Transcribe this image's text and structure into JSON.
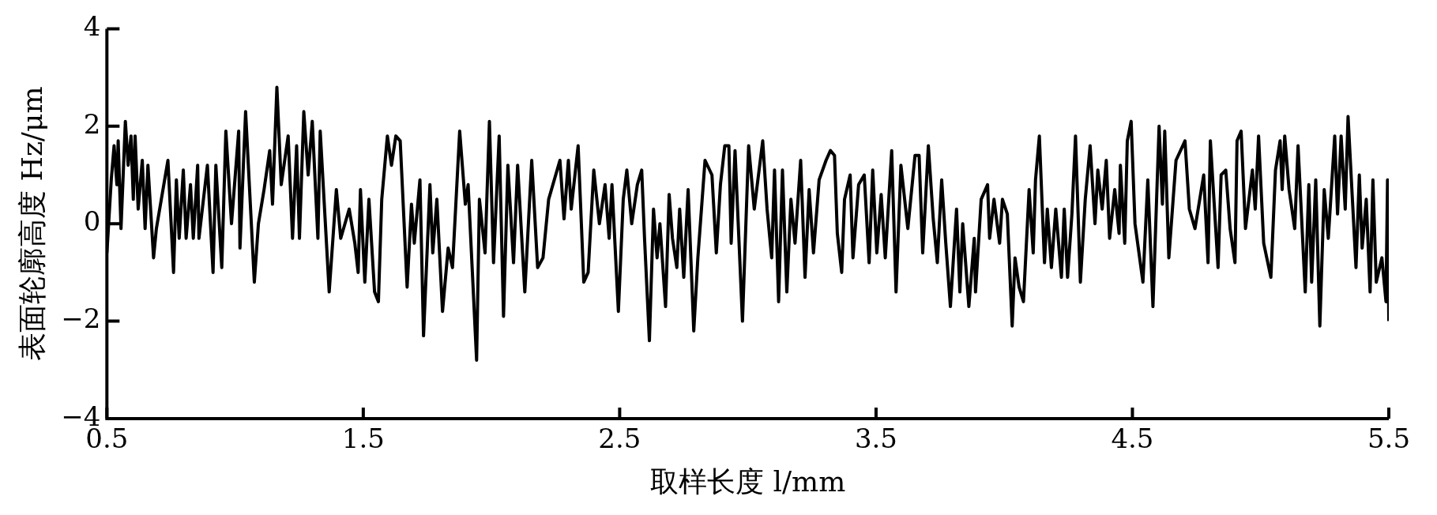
{
  "chart_data": {
    "type": "line",
    "xlabel": "取样长度 l/mm",
    "ylabel": "表面轮廓高度 Hz/μm",
    "xlim": [
      0.5,
      5.5
    ],
    "xticks": [
      0.5,
      1.5,
      2.5,
      3.5,
      4.5,
      5.5
    ],
    "ylim": [
      -4,
      4
    ],
    "yticks": [
      {
        "value": -4,
        "label": "−4"
      },
      {
        "value": -2,
        "label": "−2"
      },
      0,
      2,
      4
    ],
    "series": [
      {
        "color": "#000000",
        "x": [
          0.5,
          0.517,
          0.528,
          0.539,
          0.544,
          0.555,
          0.572,
          0.583,
          0.594,
          0.603,
          0.61,
          0.622,
          0.638,
          0.649,
          0.66,
          0.682,
          0.693,
          0.738,
          0.76,
          0.771,
          0.782,
          0.798,
          0.809,
          0.826,
          0.837,
          0.854,
          0.859,
          0.892,
          0.914,
          0.925,
          0.948,
          0.964,
          0.986,
          1.014,
          1.019,
          1.041,
          1.075,
          1.091,
          1.113,
          1.135,
          1.146,
          1.163,
          1.18,
          1.207,
          1.224,
          1.24,
          1.251,
          1.268,
          1.285,
          1.301,
          1.323,
          1.332,
          1.367,
          1.395,
          1.412,
          1.445,
          1.467,
          1.48,
          1.489,
          1.506,
          1.522,
          1.544,
          1.559,
          1.572,
          1.594,
          1.61,
          1.627,
          1.644,
          1.671,
          1.688,
          1.699,
          1.721,
          1.735,
          1.76,
          1.771,
          1.787,
          1.809,
          1.831,
          1.848,
          1.876,
          1.898,
          1.909,
          1.942,
          1.953,
          1.975,
          1.992,
          2.008,
          2.03,
          2.047,
          2.064,
          2.086,
          2.102,
          2.13,
          2.157,
          2.18,
          2.201,
          2.223,
          2.267,
          2.283,
          2.3,
          2.311,
          2.338,
          2.36,
          2.377,
          2.399,
          2.421,
          2.443,
          2.459,
          2.47,
          2.495,
          2.514,
          2.528,
          2.547,
          2.569,
          2.586,
          2.597,
          2.616,
          2.632,
          2.646,
          2.657,
          2.679,
          2.693,
          2.706,
          2.723,
          2.734,
          2.75,
          2.767,
          2.789,
          2.805,
          2.833,
          2.86,
          2.877,
          2.893,
          2.91,
          2.926,
          2.935,
          2.95,
          2.979,
          3.003,
          3.025,
          3.058,
          3.075,
          3.093,
          3.104,
          3.12,
          3.135,
          3.152,
          3.168,
          3.184,
          3.206,
          3.223,
          3.239,
          3.256,
          3.278,
          3.305,
          3.322,
          3.338,
          3.349,
          3.366,
          3.377,
          3.399,
          3.41,
          3.432,
          3.454,
          3.473,
          3.487,
          3.503,
          3.52,
          3.536,
          3.561,
          3.578,
          3.597,
          3.624,
          3.652,
          3.668,
          3.682,
          3.704,
          3.723,
          3.739,
          3.756,
          3.772,
          3.79,
          3.814,
          3.827,
          3.838,
          3.862,
          3.883,
          3.888,
          3.91,
          3.935,
          3.943,
          3.96,
          3.982,
          3.993,
          4.012,
          4.031,
          4.042,
          4.058,
          4.075,
          4.097,
          4.113,
          4.122,
          4.137,
          4.157,
          4.168,
          4.184,
          4.201,
          4.223,
          4.234,
          4.247,
          4.264,
          4.278,
          4.297,
          4.316,
          4.335,
          4.354,
          4.365,
          4.382,
          4.398,
          4.411,
          4.431,
          4.448,
          4.453,
          4.47,
          4.48,
          4.495,
          4.51,
          4.541,
          4.56,
          4.58,
          4.604,
          4.617,
          4.626,
          4.642,
          4.67,
          4.705,
          4.722,
          4.744,
          4.778,
          4.795,
          4.804,
          4.834,
          4.846,
          4.864,
          4.881,
          4.9,
          4.908,
          4.924,
          4.941,
          4.968,
          4.979,
          4.992,
          5.012,
          5.04,
          5.058,
          5.076,
          5.084,
          5.094,
          5.111,
          5.133,
          5.146,
          5.174,
          5.188,
          5.199,
          5.215,
          5.231,
          5.248,
          5.264,
          5.289,
          5.3,
          5.314,
          5.33,
          5.341,
          5.372,
          5.385,
          5.396,
          5.412,
          5.427,
          5.438,
          5.451,
          5.473,
          5.489,
          5.495,
          5.5
        ],
        "values": [
          -0.6,
          0.9,
          1.6,
          0.8,
          1.7,
          -0.1,
          2.1,
          1.2,
          1.8,
          0.5,
          1.8,
          0.3,
          1.3,
          -0.1,
          1.2,
          -0.7,
          -0.1,
          1.3,
          -1.0,
          0.9,
          -0.3,
          1.1,
          -0.3,
          0.8,
          -0.3,
          1.2,
          -0.3,
          1.2,
          -1.0,
          1.2,
          -0.9,
          1.9,
          0.0,
          1.9,
          -0.5,
          2.3,
          -1.2,
          0.0,
          0.7,
          1.5,
          0.4,
          2.8,
          0.8,
          1.8,
          -0.3,
          1.6,
          -0.3,
          2.3,
          1.0,
          2.1,
          -0.3,
          1.9,
          -1.4,
          0.7,
          -0.3,
          0.3,
          -0.4,
          -1.0,
          0.7,
          -1.2,
          0.5,
          -1.4,
          -1.6,
          0.5,
          1.8,
          1.2,
          1.8,
          1.7,
          -1.3,
          0.4,
          -0.4,
          0.9,
          -2.3,
          0.8,
          -0.6,
          0.5,
          -1.8,
          -0.5,
          -0.9,
          1.9,
          0.4,
          0.8,
          -2.8,
          0.5,
          -0.6,
          2.1,
          -0.8,
          1.8,
          -1.9,
          1.2,
          -0.8,
          1.2,
          -1.4,
          1.3,
          -0.9,
          -0.7,
          0.5,
          1.3,
          0.1,
          1.3,
          0.3,
          1.6,
          -1.2,
          -1.0,
          1.1,
          0.0,
          0.8,
          -0.3,
          0.8,
          -1.8,
          0.5,
          1.1,
          0.0,
          0.8,
          1.1,
          -0.3,
          -2.4,
          0.3,
          -0.7,
          0.0,
          -1.7,
          0.6,
          -0.3,
          -0.9,
          0.3,
          -1.1,
          0.7,
          -2.2,
          -0.7,
          1.3,
          1.0,
          -0.6,
          0.8,
          1.6,
          1.6,
          -0.4,
          1.5,
          -2.0,
          1.6,
          0.3,
          1.7,
          0.3,
          -0.7,
          1.1,
          -1.6,
          1.1,
          -1.4,
          0.5,
          -0.4,
          1.3,
          -1.1,
          0.7,
          -0.6,
          0.9,
          1.3,
          1.5,
          1.4,
          -0.2,
          -1.0,
          0.5,
          1.0,
          -0.7,
          0.8,
          1.0,
          -0.8,
          1.1,
          -0.6,
          0.6,
          -0.7,
          1.5,
          -1.4,
          1.2,
          -0.1,
          1.4,
          1.4,
          -0.6,
          1.6,
          0.1,
          -0.8,
          0.9,
          -0.4,
          -1.7,
          0.3,
          -1.4,
          0.0,
          -1.7,
          -0.3,
          -1.4,
          0.5,
          0.8,
          -0.3,
          0.5,
          -0.4,
          0.5,
          0.2,
          -2.1,
          -0.7,
          -1.3,
          -1.6,
          0.7,
          -0.6,
          0.9,
          1.8,
          -0.8,
          0.3,
          -0.9,
          0.3,
          -1.1,
          0.3,
          -1.1,
          0.2,
          1.8,
          -1.2,
          0.5,
          1.6,
          0.0,
          1.1,
          0.3,
          1.3,
          -0.3,
          0.7,
          -0.2,
          1.2,
          -0.4,
          1.7,
          2.1,
          0.0,
          -1.2,
          0.9,
          -1.7,
          2.0,
          0.4,
          1.9,
          -0.7,
          1.3,
          1.7,
          0.3,
          -0.1,
          1.0,
          -0.8,
          1.7,
          -0.9,
          1.0,
          1.1,
          -0.1,
          -0.8,
          1.7,
          1.9,
          -0.1,
          1.1,
          0.3,
          1.8,
          -0.4,
          -1.1,
          1.1,
          1.7,
          0.7,
          1.8,
          0.7,
          -0.1,
          1.6,
          -1.4,
          0.8,
          -1.2,
          0.9,
          -2.1,
          0.7,
          -0.3,
          1.8,
          0.2,
          1.8,
          0.3,
          2.2,
          -0.9,
          1.0,
          -0.5,
          0.5,
          -1.4,
          0.9,
          -1.2,
          -0.7,
          -1.6,
          0.9,
          -2.0
        ]
      }
    ]
  }
}
